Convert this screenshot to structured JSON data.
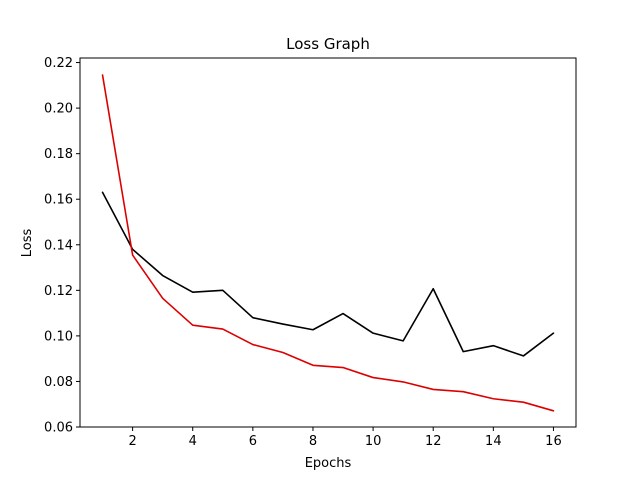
{
  "chart_data": {
    "type": "line",
    "title": "Loss Graph",
    "xlabel": "Epochs",
    "ylabel": "Loss",
    "x": [
      1,
      2,
      3,
      4,
      5,
      6,
      7,
      8,
      9,
      10,
      11,
      12,
      13,
      14,
      15,
      16
    ],
    "xlim": [
      0.25,
      16.75
    ],
    "ylim": [
      0.06,
      0.222
    ],
    "xticks": [
      2,
      4,
      6,
      8,
      10,
      12,
      14,
      16
    ],
    "yticks": [
      "0.06",
      "0.08",
      "0.10",
      "0.12",
      "0.14",
      "0.16",
      "0.18",
      "0.20",
      "0.22"
    ],
    "grid": false,
    "series": [
      {
        "color": "#000000",
        "values": [
          0.163,
          0.138,
          0.1265,
          0.1192,
          0.12,
          0.108,
          0.1052,
          0.1027,
          0.1098,
          0.1012,
          0.0978,
          0.1207,
          0.0931,
          0.0957,
          0.0912,
          0.1012
        ]
      },
      {
        "color": "#dd0000",
        "values": [
          0.2145,
          0.1355,
          0.1165,
          0.1047,
          0.103,
          0.0962,
          0.0927,
          0.0871,
          0.0861,
          0.0817,
          0.0798,
          0.0765,
          0.0755,
          0.0724,
          0.0709,
          0.0671
        ]
      }
    ]
  }
}
